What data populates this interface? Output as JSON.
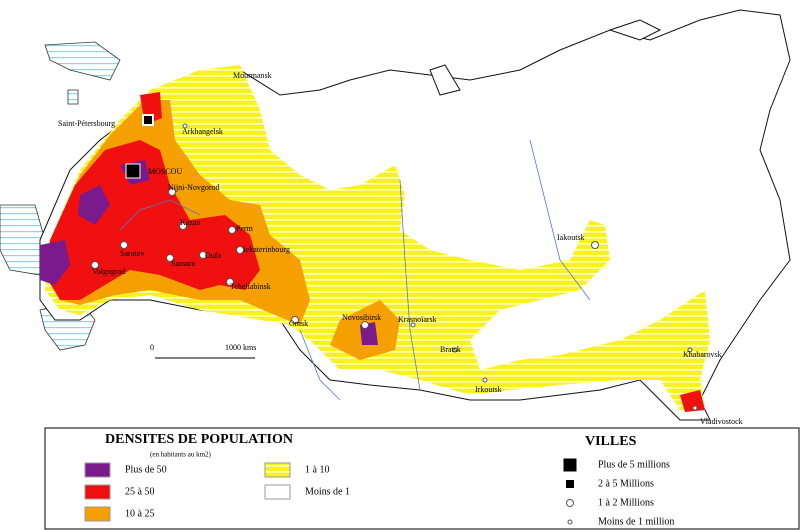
{
  "map": {
    "cities": [
      "Mourmansk",
      "Saint-Pétersbourg",
      "Arkhangelsk",
      "MOSCOU",
      "Nijni-Novgorod",
      "Kazan",
      "Perm",
      "Iekaterinbourg",
      "Tcheliabinsk",
      "Oufa",
      "Samara",
      "Saratov",
      "Volgograd",
      "Omsk",
      "Novosibirsk",
      "Krasnoïarsk",
      "Bratsk",
      "Iakoutsk",
      "Irkoutsk",
      "Khabarovsk",
      "Vladivostock"
    ],
    "scale": {
      "start": "0",
      "end": "1000 kms"
    }
  },
  "legend_density": {
    "title": "DENSITES DE POPULATION",
    "subtitle": "(en habitants au km2)",
    "items": [
      {
        "label": "Plus de 50",
        "color": "#7a1a8c"
      },
      {
        "label": "25 à 50",
        "color": "#f01010"
      },
      {
        "label": "10 à 25",
        "color": "#f5a000"
      },
      {
        "label": "1 à 10",
        "color": "#f8f020"
      },
      {
        "label": "Moins de 1",
        "color": "#ffffff"
      }
    ]
  },
  "legend_cities": {
    "title": "VILLES",
    "items": [
      "Plus de 5 millions",
      "2 à 5 Millions",
      "1 à 2 Millions",
      "Moins de 1 million"
    ]
  }
}
